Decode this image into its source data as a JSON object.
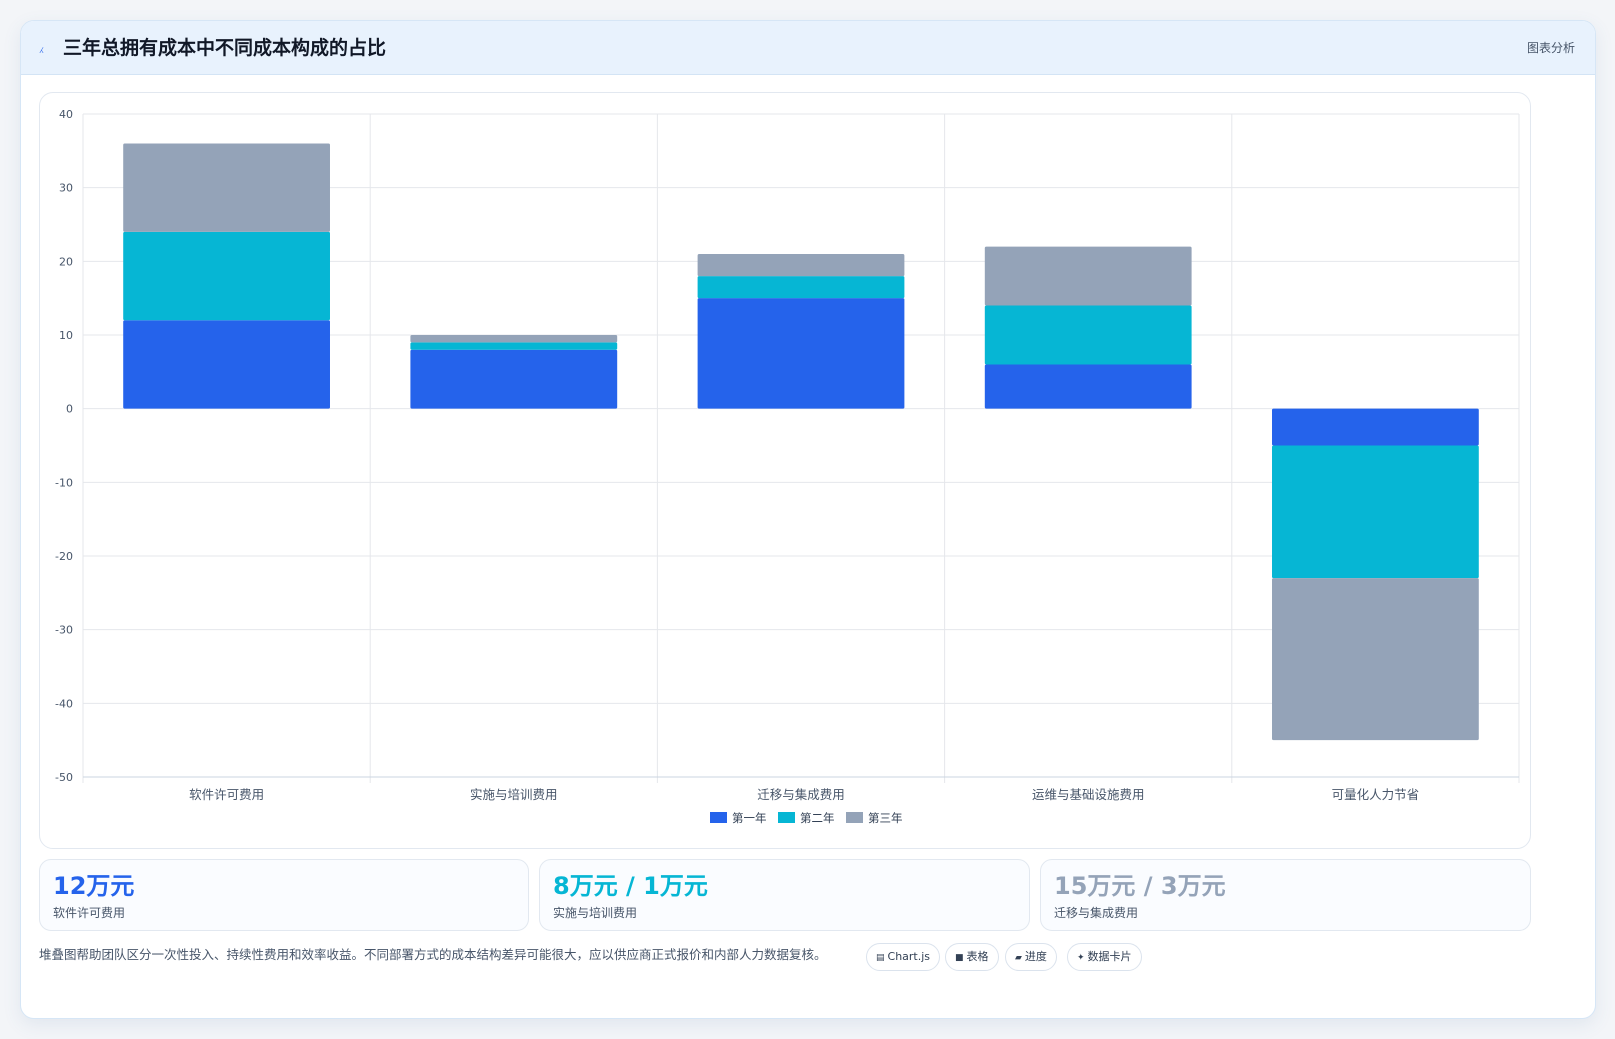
{
  "header": {
    "icon": "trend-icon",
    "title": "三年总拥有成本中不同成本构成的占比",
    "tag": "图表分析"
  },
  "chart_data": {
    "type": "bar",
    "stacked": true,
    "categories": [
      "软件许可费用",
      "实施与培训费用",
      "迁移与集成费用",
      "运维与基础设施费用",
      "可量化人力节省"
    ],
    "series": [
      {
        "name": "第一年",
        "color": "#2563eb",
        "values": [
          12,
          8,
          15,
          6,
          -5
        ]
      },
      {
        "name": "第二年",
        "color": "#06b6d4",
        "values": [
          12,
          1,
          3,
          8,
          -18
        ]
      },
      {
        "name": "第三年",
        "color": "#94a3b8",
        "values": [
          12,
          1,
          3,
          8,
          -22
        ]
      }
    ],
    "ylim": [
      -50,
      40
    ],
    "yticks": [
      40,
      30,
      20,
      10,
      0,
      -10,
      -20,
      -30,
      -40,
      -50
    ],
    "grid": true,
    "legend_position": "bottom"
  },
  "stats": [
    {
      "value": "12万元",
      "label": "软件许可费用",
      "color": "#2563eb"
    },
    {
      "value": "8万元 / 1万元",
      "label": "实施与培训费用",
      "color": "#06b6d4"
    },
    {
      "value": "15万元 / 3万元",
      "label": "迁移与集成费用",
      "color": "#94a3b8"
    }
  ],
  "footnote": "堆叠图帮助团队区分一次性投入、持续性费用和效率收益。不同部署方式的成本结构差异可能很大，应以供应商正式报价和内部人力数据复核。",
  "pills": [
    {
      "icon": "chart-icon",
      "label": "Chart.js"
    },
    {
      "icon": "table-icon",
      "label": "表格"
    },
    {
      "icon": "progress-icon",
      "label": "进度"
    },
    {
      "icon": "sparkle-icon",
      "label": "数据卡片"
    }
  ]
}
